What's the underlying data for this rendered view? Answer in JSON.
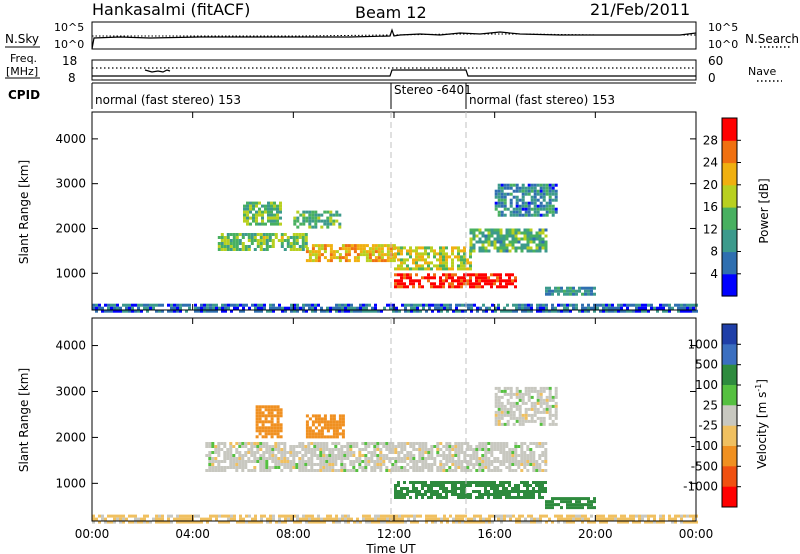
{
  "header": {
    "station": "Hankasalmi (fitACF)",
    "beam": "Beam 12",
    "date": "21/Feb/2011"
  },
  "noise_panel": {
    "left_label": "N.Sky",
    "right_label": "N.Search",
    "ticks_left": [
      "10^5",
      "10^0"
    ],
    "ticks_right": [
      "10^5",
      "10^0"
    ]
  },
  "freq_panel": {
    "left_label_1": "Freq.",
    "left_label_2": "[MHz]",
    "ticks_left": [
      "18",
      "8"
    ],
    "ticks_right": [
      "60",
      "0"
    ],
    "right_label": "Nave"
  },
  "cpid_panel": {
    "label": "CPID",
    "segments": [
      {
        "text": "normal (fast stereo) 153",
        "start_hour": 0,
        "end_hour": 12
      },
      {
        "text": "Stereo -6401",
        "start_hour": 12,
        "end_hour": 15
      },
      {
        "text": "normal (fast stereo) 153",
        "start_hour": 15,
        "end_hour": 24
      }
    ]
  },
  "chart_data": [
    {
      "type": "heatmap",
      "title": "",
      "xlabel": "Time UT",
      "ylabel": "Slant Range [km]",
      "xlim": [
        0,
        24
      ],
      "ylim": [
        180,
        4600
      ],
      "x_ticks": [
        "00:00",
        "04:00",
        "08:00",
        "12:00",
        "16:00",
        "20:00",
        "00:00"
      ],
      "y_ticks": [
        1000,
        2000,
        3000,
        4000
      ],
      "colorbar_label": "Power [dB]",
      "colorbar_ticks": [
        4,
        8,
        12,
        16,
        20,
        24,
        28
      ],
      "colorbar_range": [
        0,
        30
      ],
      "colorbar_colors": [
        "#0000ff",
        "#2f6fb0",
        "#3c9a8c",
        "#48b060",
        "#b8d020",
        "#f0b010",
        "#f07010",
        "#ff0000"
      ],
      "regions": [
        {
          "t0": 5.0,
          "t1": 8.5,
          "r0": 1500,
          "r1": 1900,
          "power": 14
        },
        {
          "t0": 8.5,
          "t1": 12.0,
          "r0": 1250,
          "r1": 1650,
          "power": 20
        },
        {
          "t0": 12.0,
          "t1": 15.0,
          "r0": 1100,
          "r1": 1600,
          "power": 17
        },
        {
          "t0": 15.0,
          "t1": 18.0,
          "r0": 1500,
          "r1": 2000,
          "power": 12
        },
        {
          "t0": 12.0,
          "t1": 16.8,
          "r0": 700,
          "r1": 1000,
          "power": 28
        },
        {
          "t0": 6.0,
          "t1": 7.5,
          "r0": 2100,
          "r1": 2600,
          "power": 13
        },
        {
          "t0": 8.0,
          "t1": 9.8,
          "r0": 2000,
          "r1": 2400,
          "power": 12
        },
        {
          "t0": 16.0,
          "t1": 18.5,
          "r0": 2300,
          "r1": 3000,
          "power": 8
        },
        {
          "t0": 18.0,
          "t1": 20.0,
          "r0": 500,
          "r1": 700,
          "power": 10
        },
        {
          "t0": 0.0,
          "t1": 24.0,
          "r0": 180,
          "r1": 320,
          "power": 6
        }
      ]
    },
    {
      "type": "heatmap",
      "title": "",
      "xlabel": "Time UT",
      "ylabel": "Slant Range [km]",
      "xlim": [
        0,
        24
      ],
      "ylim": [
        180,
        4600
      ],
      "x_ticks": [
        "00:00",
        "04:00",
        "08:00",
        "12:00",
        "16:00",
        "20:00",
        "00:00"
      ],
      "y_ticks": [
        1000,
        2000,
        3000,
        4000
      ],
      "colorbar_label": "Velocity [m s^-1]",
      "colorbar_ticks": [
        "1000",
        "500",
        "100",
        "25",
        "-25",
        "-100",
        "-500",
        "-1000"
      ],
      "colorbar_colors": [
        "#1f3fa8",
        "#3b6fc0",
        "#2e8b3e",
        "#55c040",
        "#c8c8c0",
        "#f0c060",
        "#f09020",
        "#f05010",
        "#ff0000"
      ],
      "regions": [
        {
          "t0": 4.5,
          "t1": 18.0,
          "r0": 1300,
          "r1": 1900,
          "velocity": 0
        },
        {
          "t0": 12.0,
          "t1": 18.0,
          "r0": 700,
          "r1": 1050,
          "velocity": 150
        },
        {
          "t0": 6.5,
          "t1": 7.5,
          "r0": 2000,
          "r1": 2700,
          "velocity": -300
        },
        {
          "t0": 8.5,
          "t1": 10.0,
          "r0": 2000,
          "r1": 2500,
          "velocity": -300
        },
        {
          "t0": 16.0,
          "t1": 18.5,
          "r0": 2300,
          "r1": 3100,
          "velocity": 0
        },
        {
          "t0": 18.0,
          "t1": 20.0,
          "r0": 500,
          "r1": 700,
          "velocity": 150
        },
        {
          "t0": 0.0,
          "t1": 24.0,
          "r0": 180,
          "r1": 320,
          "velocity": -40
        }
      ]
    }
  ]
}
